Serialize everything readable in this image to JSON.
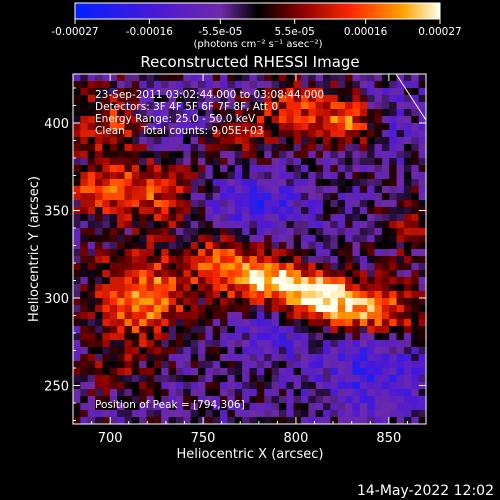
{
  "chart_data": {
    "type": "heatmap",
    "title": "Reconstructed RHESSI Image",
    "xlabel": "Heliocentric X (arcsec)",
    "ylabel": "Heliocentric Y (arcsec)",
    "xlim": [
      680,
      870
    ],
    "ylim": [
      228,
      428
    ],
    "xticks": [
      700,
      750,
      800,
      850
    ],
    "yticks": [
      250,
      300,
      350,
      400
    ],
    "colorbar": {
      "label": "(photons cm⁻² s⁻¹ asec⁻²)",
      "min": -0.00027,
      "max": 0.00027,
      "tick_labels": [
        "-0.00027",
        "-0.00016",
        "-5.5e-05",
        "5.5e-05",
        "0.00016",
        "0.00027"
      ]
    },
    "annotations": [
      "23-Sep-2011 03:02:44.000 to 03:08:44.000",
      "Detectors: 3F 4F 5F 6F 7F 8F, Att 0",
      "Energy Range: 25.0 - 50.0 keV",
      "Clean     Total counts: 9.05E+03"
    ],
    "peak_label": "Position of Peak = [794,306]",
    "peak": [
      794,
      306
    ],
    "features": [
      {
        "x": 800,
        "y": 300,
        "amp": 1.0,
        "sx": 18,
        "sy": 10
      },
      {
        "x": 780,
        "y": 312,
        "amp": 0.75,
        "sx": 20,
        "sy": 9
      },
      {
        "x": 825,
        "y": 296,
        "amp": 0.7,
        "sx": 16,
        "sy": 10
      },
      {
        "x": 760,
        "y": 322,
        "amp": 0.55,
        "sx": 16,
        "sy": 10
      },
      {
        "x": 850,
        "y": 290,
        "amp": 0.55,
        "sx": 14,
        "sy": 12
      },
      {
        "x": 700,
        "y": 362,
        "amp": 0.75,
        "sx": 16,
        "sy": 10
      },
      {
        "x": 730,
        "y": 360,
        "amp": 0.45,
        "sx": 12,
        "sy": 16
      },
      {
        "x": 710,
        "y": 300,
        "amp": 0.7,
        "sx": 14,
        "sy": 22
      },
      {
        "x": 730,
        "y": 300,
        "amp": 0.5,
        "sx": 10,
        "sy": 12
      },
      {
        "x": 700,
        "y": 400,
        "amp": 0.55,
        "sx": 18,
        "sy": 14
      },
      {
        "x": 830,
        "y": 400,
        "amp": 0.7,
        "sx": 16,
        "sy": 10
      },
      {
        "x": 800,
        "y": 410,
        "amp": 0.5,
        "sx": 16,
        "sy": 10
      },
      {
        "x": 770,
        "y": 395,
        "amp": 0.4,
        "sx": 14,
        "sy": 10
      },
      {
        "x": 860,
        "y": 340,
        "amp": 0.35,
        "sx": 10,
        "sy": 14
      },
      {
        "x": 700,
        "y": 255,
        "amp": 0.25,
        "sx": 12,
        "sy": 10
      },
      {
        "x": 790,
        "y": 290,
        "amp": -0.55,
        "sx": 14,
        "sy": 14
      },
      {
        "x": 840,
        "y": 260,
        "amp": -0.5,
        "sx": 20,
        "sy": 16
      },
      {
        "x": 780,
        "y": 355,
        "amp": -0.5,
        "sx": 18,
        "sy": 10
      },
      {
        "x": 850,
        "y": 400,
        "amp": -0.45,
        "sx": 10,
        "sy": 12
      },
      {
        "x": 730,
        "y": 400,
        "amp": -0.35,
        "sx": 12,
        "sy": 12
      }
    ],
    "grid": false
  },
  "footer": {
    "date_stamp": "14-May-2022 12:02"
  },
  "colors": {
    "background": "#000000",
    "foreground": "#ffffff"
  }
}
